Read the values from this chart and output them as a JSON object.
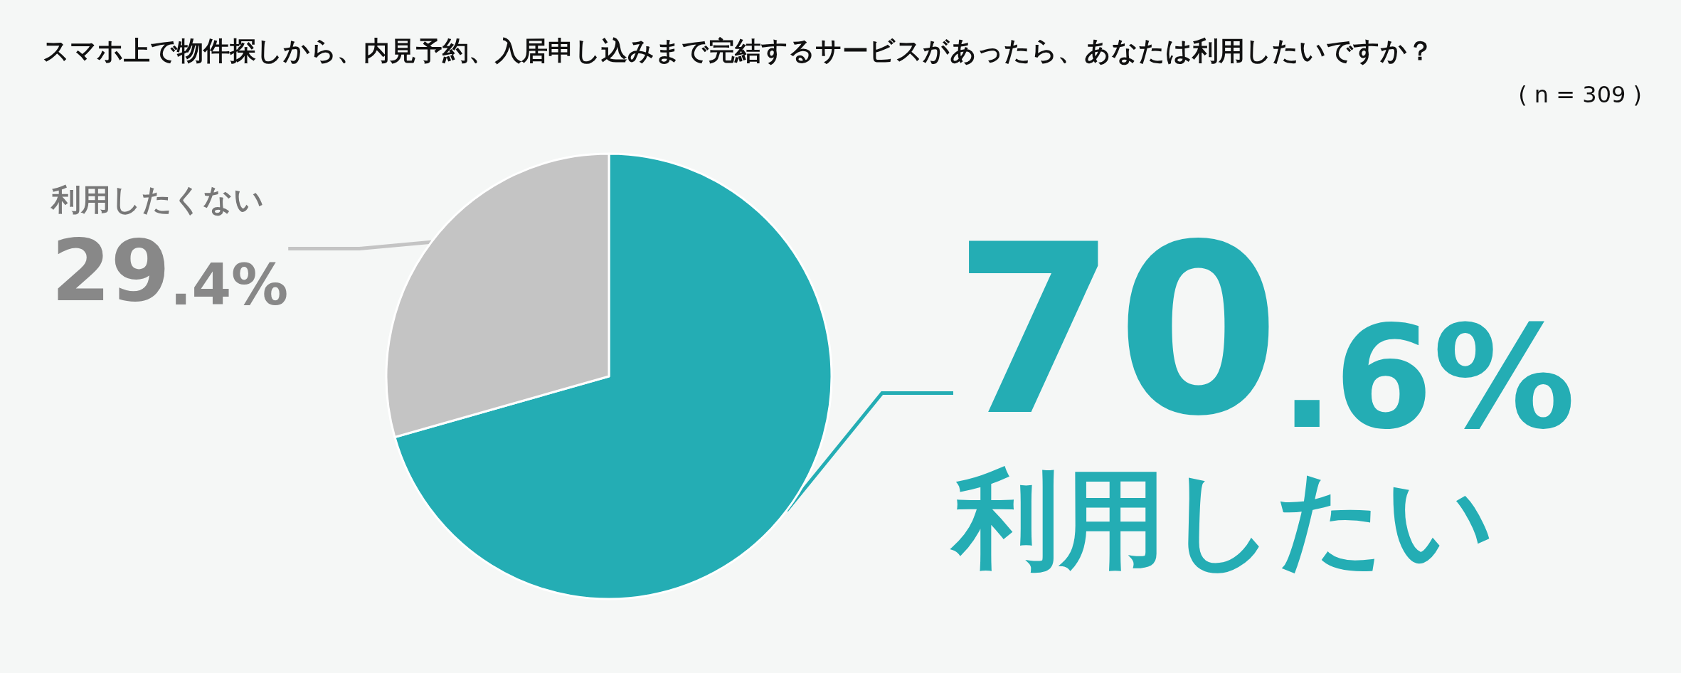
{
  "chart_data": {
    "type": "pie",
    "title": "スマホ上で物件探しから、内見予約、入居申し込みまで完結するサービスがあったら、あなたは利用したいですか？",
    "subtitle": "( n = 309 )",
    "categories": [
      "利用したい",
      "利用したくない"
    ],
    "values": [
      70.6,
      29.4
    ],
    "colors": [
      "#24adb4",
      "#c4c4c4"
    ],
    "value_labels": [
      "70.6%",
      "29.4%"
    ],
    "legend": false
  }
}
